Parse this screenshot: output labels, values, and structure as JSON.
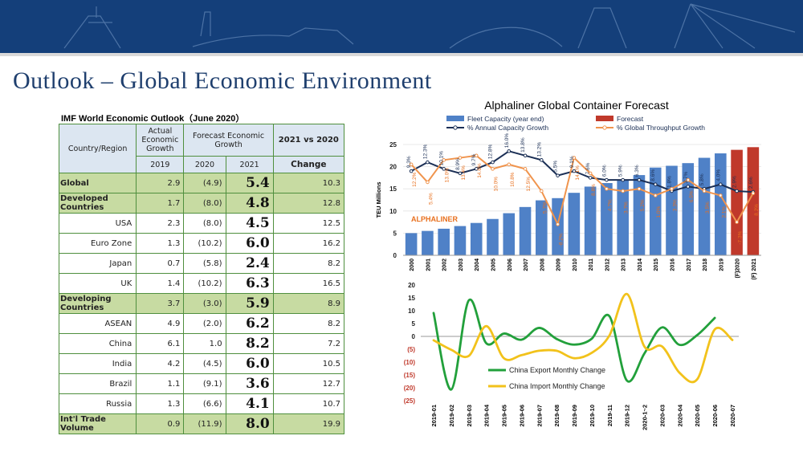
{
  "page": {
    "title": "Outlook – Global Economic Environment"
  },
  "colors": {
    "banner": "#143f7a",
    "title": "#1f3f6e",
    "header_fill": "#dce6f1",
    "highlight_fill": "#c7dba2",
    "table_border": "#4f8f3e"
  },
  "table": {
    "title": "IMF World Economic Outlook（June 2020）",
    "headers": {
      "region": "Country/Region",
      "actual": "Actual Economic Growth",
      "forecast": "Forecast Economic Growth",
      "vs": "2021 vs 2020",
      "y2019": "2019",
      "y2020": "2020",
      "y2021": "2021",
      "change": "Change"
    },
    "rows": [
      {
        "name": "Global",
        "v2019": "2.9",
        "v2020": "(4.9)",
        "v2021": "5.4",
        "change": "10.3",
        "highlight": true
      },
      {
        "name": "Developed Countries",
        "v2019": "1.7",
        "v2020": "(8.0)",
        "v2021": "4.8",
        "change": "12.8",
        "highlight": true
      },
      {
        "name": "USA",
        "v2019": "2.3",
        "v2020": "(8.0)",
        "v2021": "4.5",
        "change": "12.5",
        "highlight": false
      },
      {
        "name": "Euro Zone",
        "v2019": "1.3",
        "v2020": "(10.2)",
        "v2021": "6.0",
        "change": "16.2",
        "highlight": false
      },
      {
        "name": "Japan",
        "v2019": "0.7",
        "v2020": "(5.8)",
        "v2021": "2.4",
        "change": "8.2",
        "highlight": false
      },
      {
        "name": "UK",
        "v2019": "1.4",
        "v2020": "(10.2)",
        "v2021": "6.3",
        "change": "16.5",
        "highlight": false
      },
      {
        "name": "Developing Countries",
        "v2019": "3.7",
        "v2020": "(3.0)",
        "v2021": "5.9",
        "change": "8.9",
        "highlight": true
      },
      {
        "name": "ASEAN",
        "v2019": "4.9",
        "v2020": "(2.0)",
        "v2021": "6.2",
        "change": "8.2",
        "highlight": false
      },
      {
        "name": "China",
        "v2019": "6.1",
        "v2020": "1.0",
        "v2021": "8.2",
        "change": "7.2",
        "highlight": false
      },
      {
        "name": "India",
        "v2019": "4.2",
        "v2020": "(4.5)",
        "v2021": "6.0",
        "change": "10.5",
        "highlight": false
      },
      {
        "name": "Brazil",
        "v2019": "1.1",
        "v2020": "(9.1)",
        "v2021": "3.6",
        "change": "12.7",
        "highlight": false
      },
      {
        "name": "Russia",
        "v2019": "1.3",
        "v2020": "(6.6)",
        "v2021": "4.1",
        "change": "10.7",
        "highlight": false
      },
      {
        "name": "Int'l Trade Volume",
        "v2019": "0.9",
        "v2020": "(11.9)",
        "v2021": "8.0",
        "change": "19.9",
        "highlight": true
      }
    ]
  },
  "chart_data": [
    {
      "type": "bar",
      "title": "Alphaliner Global Container Forecast",
      "brand": "ALPHALINER",
      "ylabel": "TEU Millions",
      "ylim": [
        0,
        25
      ],
      "yticks": [
        "0",
        "5",
        "10",
        "15",
        "20",
        "25"
      ],
      "legend": [
        "Fleet Capacity (year end)",
        "Forecast",
        "% Annual Capacity Growth",
        "% Global Throughput Growth"
      ],
      "legend_position": "top",
      "categories": [
        "2000",
        "2001",
        "2002",
        "2003",
        "2004",
        "2005",
        "2006",
        "2007",
        "2008",
        "2009",
        "2010",
        "2011",
        "2012",
        "2013",
        "2014",
        "2015",
        "2016",
        "2017",
        "2018",
        "2019",
        "(F)2020",
        "(F) 2021"
      ],
      "series": [
        {
          "name": "Fleet Capacity (year end)",
          "color": "#4f81c7",
          "values": [
            5.0,
            5.5,
            6.0,
            6.6,
            7.3,
            8.2,
            9.5,
            10.9,
            12.4,
            12.9,
            14.1,
            15.5,
            16.3,
            16.9,
            18.1,
            19.8,
            20.2,
            20.8,
            22.0,
            23.0,
            null,
            null
          ]
        },
        {
          "name": "Forecast",
          "color": "#c0392b",
          "values": [
            null,
            null,
            null,
            null,
            null,
            null,
            null,
            null,
            null,
            null,
            null,
            null,
            null,
            null,
            null,
            null,
            null,
            null,
            null,
            null,
            23.8,
            24.4
          ]
        },
        {
          "name": "% Annual Capacity Growth",
          "color": "#1b2f55",
          "values": [
            19.0,
            21.0,
            19.5,
            18.5,
            19.5,
            21.0,
            23.5,
            22.5,
            21.5,
            18.0,
            19.0,
            17.5,
            17.0,
            17.0,
            17.0,
            16.0,
            14.5,
            15.5,
            15.0,
            16.0,
            14.5,
            14.3
          ]
        },
        {
          "name": "% Global Throughput Growth",
          "color": "#f0944d",
          "values": [
            20.5,
            16.5,
            21.5,
            22.0,
            22.5,
            19.5,
            20.5,
            19.5,
            14.5,
            7.0,
            22.0,
            18.5,
            15.0,
            14.5,
            15.0,
            13.5,
            15.0,
            17.0,
            14.5,
            13.5,
            7.5,
            14.0
          ]
        }
      ],
      "capacity_labels": [
        "9.3%",
        "12.3%",
        "10.1%",
        "8.9%",
        "9.7%",
        "12.8%",
        "16.0%",
        "13.8%",
        "13.2%",
        "5.5%",
        "9.1%",
        "7.6%",
        "6.0%",
        "5.9%",
        "6.3%",
        "8.6%",
        "1.8%",
        "3.7%",
        "5.8%",
        "4.0%",
        "2.9%",
        "2.6%"
      ],
      "throughput_labels": [
        "12.2%",
        "5.4%",
        "13.0%",
        "13.4%",
        "14.6%",
        "10.0%",
        "10.8%",
        "12.5%",
        "5.7%",
        "-8.2%",
        "14.1%",
        "8.8%",
        "4.7%",
        "3.7%",
        "5.2%",
        "1.0%",
        "3.3%",
        "6.5%",
        "3.5%",
        "2.1%",
        "-7.3%",
        "8.2%"
      ]
    },
    {
      "type": "line",
      "categories": [
        "2019-01",
        "2019-02",
        "2019-03",
        "2019-04",
        "2019-05",
        "2019-06",
        "2019-07",
        "2019-08",
        "2019-09",
        "2019-10",
        "2019-11",
        "2019-12",
        "2020-1~2",
        "2020-03",
        "2020-04",
        "2020-05",
        "2020-06",
        "2020-07"
      ],
      "ylim": [
        -25,
        20
      ],
      "yticks": [
        "20",
        "15",
        "10",
        "5",
        "0",
        "(5)",
        "(10)",
        "(15)",
        "(20)",
        "(25)"
      ],
      "series": [
        {
          "name": "China Export Monthly Change",
          "color": "#22a03b",
          "values": [
            9.1,
            -20.7,
            14.0,
            -2.7,
            1.1,
            -1.3,
            3.3,
            -1.0,
            -3.2,
            -0.9,
            7.9,
            -17.2,
            -6.6,
            3.5,
            -3.3,
            0.5,
            7.2,
            null
          ]
        },
        {
          "name": "China Import Monthly Change",
          "color": "#f2c21b",
          "values": [
            -1.5,
            -5.2,
            -7.6,
            4.0,
            -8.5,
            -7.3,
            -5.6,
            -5.6,
            -8.5,
            -6.4,
            0.3,
            16.5,
            -4.0,
            -3.9,
            -14.2,
            -16.7,
            2.7,
            -1.4
          ]
        }
      ]
    }
  ]
}
